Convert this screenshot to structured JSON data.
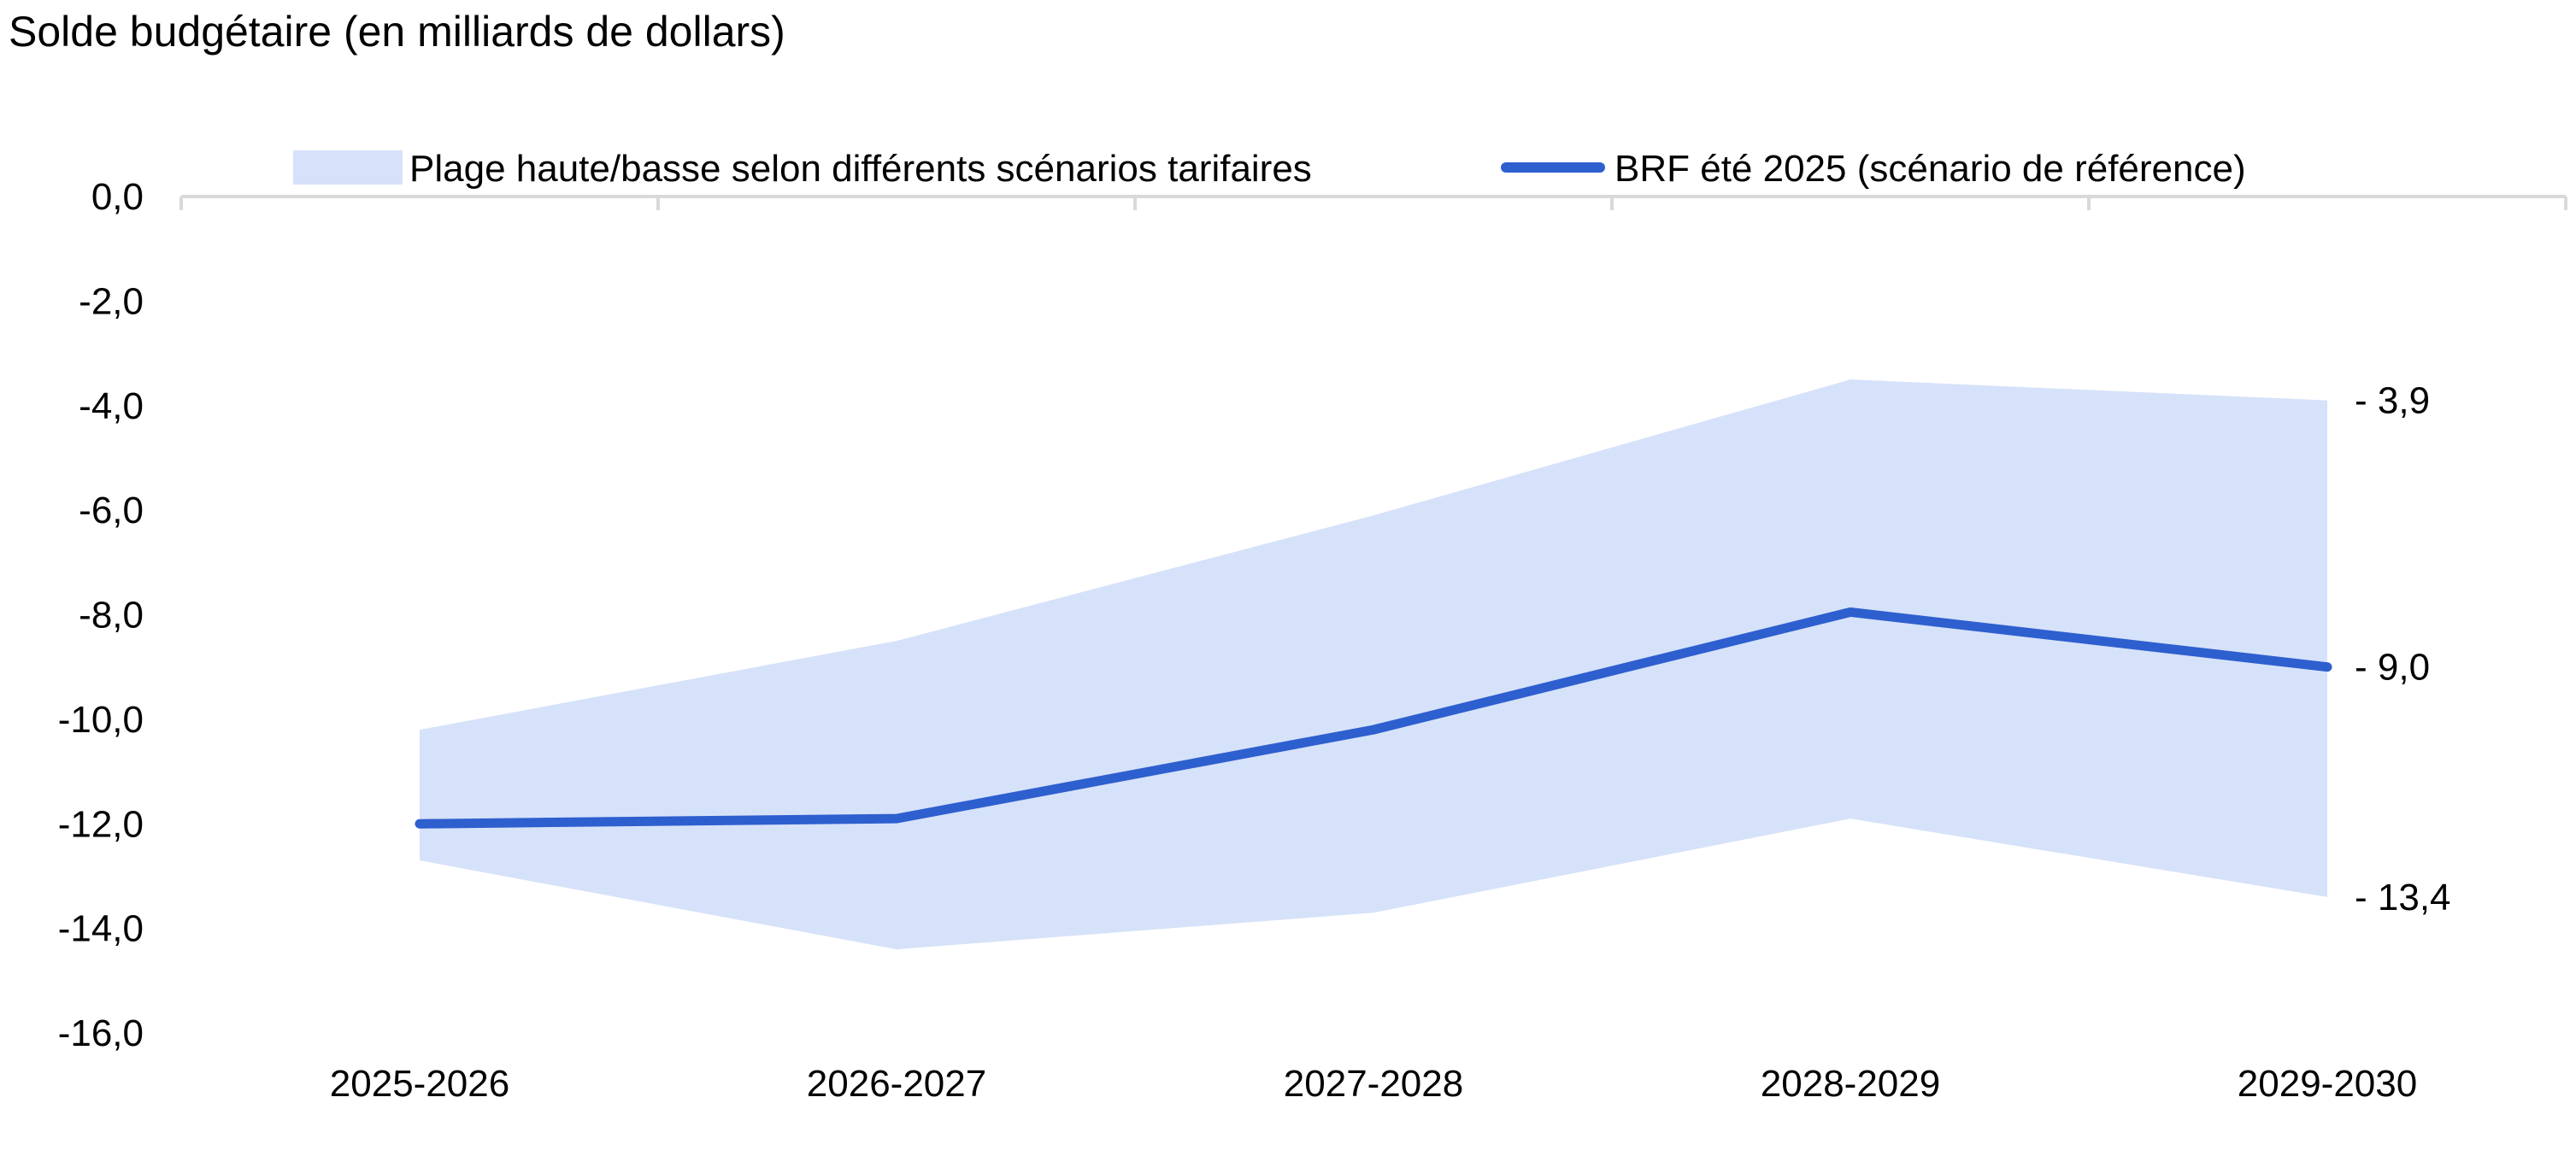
{
  "chart_data": {
    "type": "area",
    "title": "Solde budgétaire (en milliards de dollars)",
    "xlabel": "",
    "ylabel": "",
    "categories": [
      "2025-2026",
      "2026-2027",
      "2027-2028",
      "2028-2029",
      "2029-2030"
    ],
    "ylim": [
      -16,
      0
    ],
    "yticks": [
      0,
      -2,
      -4,
      -6,
      -8,
      -10,
      -12,
      -14,
      -16
    ],
    "ytick_labels": [
      "0,0",
      "-2,0",
      "-4,0",
      "-6,0",
      "-8,0",
      "-10,0",
      "-12,0",
      "-14,0",
      "-16,0"
    ],
    "grid": false,
    "legend_position": "top",
    "series": [
      {
        "name": "Plage haute/basse selon différents scénarios tarifaires",
        "kind": "range",
        "color": "#d6e2f9",
        "high": [
          -10.2,
          -8.5,
          -6.1,
          -3.5,
          -3.9
        ],
        "low": [
          -12.7,
          -14.4,
          -13.7,
          -11.9,
          -13.4
        ]
      },
      {
        "name": "BRF été 2025 (scénario de référence)",
        "kind": "line",
        "color": "#2e5fcf",
        "values": [
          -12.0,
          -11.9,
          -10.2,
          -7.95,
          -9.0
        ]
      }
    ],
    "annotations": [
      {
        "label": "- 3,9",
        "value": -3.9
      },
      {
        "label": "- 9,0",
        "value": -9.0
      },
      {
        "label": "- 13,4",
        "value": -13.4
      }
    ],
    "axis_color": "#d9d9d9"
  }
}
